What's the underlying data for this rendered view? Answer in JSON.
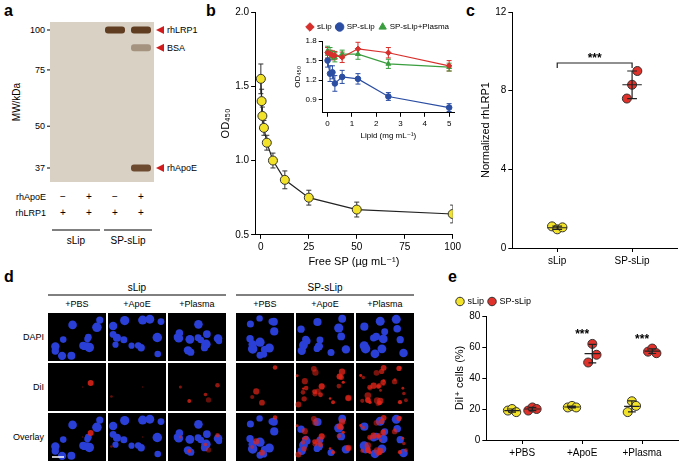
{
  "panel_labels": [
    "a",
    "b",
    "c",
    "d",
    "e"
  ],
  "blot": {
    "axis_label": "MW/kDa",
    "markers": [
      100,
      75,
      50,
      37
    ],
    "bands": [
      {
        "label": "rhLRP1",
        "mw": 100,
        "lanes": [
          2,
          3
        ]
      },
      {
        "label": "BSA",
        "mw": 88,
        "lanes": [
          3
        ]
      },
      {
        "label": "rhApoE",
        "mw": 37,
        "lanes": [
          3
        ]
      }
    ],
    "rows": [
      {
        "label": "rhApoE",
        "signs": [
          "−",
          "+",
          "−",
          "+"
        ]
      },
      {
        "label": "rhLRP1",
        "signs": [
          "+",
          "+",
          "+",
          "+"
        ]
      }
    ],
    "groups": [
      {
        "label": "sLip",
        "lanes": [
          0,
          1
        ]
      },
      {
        "label": "SP-sLip",
        "lanes": [
          2,
          3
        ]
      }
    ]
  },
  "chart_data": [
    {
      "type": "line",
      "x_label": "Free SP (µg mL⁻¹)",
      "y_label": "OD₄₅₀",
      "x": [
        0,
        0.4,
        0.8,
        1.6,
        3.1,
        6.3,
        12.5,
        25,
        50,
        100
      ],
      "values": [
        1.55,
        1.4,
        1.3,
        1.22,
        1.12,
        1.0,
        0.87,
        0.75,
        0.67,
        0.64
      ],
      "errors": [
        0.1,
        0.08,
        0.06,
        0.05,
        0.05,
        0.05,
        0.06,
        0.05,
        0.05,
        0.06
      ],
      "color": "#f2e22a",
      "marker": "circle",
      "xlim": [
        -3,
        100
      ],
      "xticks": [
        0,
        25,
        50,
        75,
        100
      ],
      "ylim": [
        0.5,
        2.0
      ],
      "yticks": [
        0.5,
        {
          "value": 1,
          "label": "1.0"
        },
        1.5,
        {
          "value": 2,
          "label": "2.0"
        }
      ],
      "grid": false
    },
    {
      "type": "line",
      "x_label": "Lipid (mg mL⁻¹)",
      "y_label": "OD₄₅₀",
      "x": [
        0,
        0.1,
        0.2,
        0.3,
        0.6,
        1.25,
        2.5,
        5
      ],
      "series": [
        {
          "name": "sLip",
          "color": "#d7302c",
          "marker": "diamond",
          "values": [
            1.62,
            1.6,
            1.58,
            1.58,
            1.55,
            1.68,
            1.62,
            1.42
          ],
          "errors": [
            0.08,
            0.06,
            0.07,
            0.06,
            0.08,
            0.1,
            0.08,
            0.08
          ]
        },
        {
          "name": "SP-sLip",
          "color": "#2b4ea3",
          "marker": "circle",
          "values": [
            1.5,
            1.3,
            1.32,
            1.15,
            1.25,
            1.22,
            0.95,
            0.78
          ],
          "errors": [
            0.1,
            0.12,
            0.1,
            0.12,
            0.1,
            0.08,
            0.06,
            0.06
          ]
        },
        {
          "name": "SP-sLip+Plasma",
          "color": "#3a9e3f",
          "marker": "triangle",
          "values": [
            1.65,
            1.62,
            1.58,
            1.55,
            1.6,
            1.6,
            1.45,
            1.4
          ],
          "errors": [
            0.07,
            0.08,
            0.06,
            0.07,
            0.06,
            0.08,
            0.07,
            0.06
          ]
        }
      ],
      "xlim": [
        -0.2,
        5.2
      ],
      "xticks": [
        0,
        1,
        2,
        3,
        4,
        5
      ],
      "ylim": [
        0.7,
        1.8
      ],
      "yticks": [
        0.9,
        1.2,
        1.5,
        1.8
      ],
      "legend": "top-right",
      "grid": false
    },
    {
      "type": "dotplot",
      "y_label": "Normalized rhLRP1",
      "categories": [
        "sLip",
        "SP-sLip"
      ],
      "points": [
        [
          1.1,
          0.95,
          1.05
        ],
        [
          7.6,
          8.3,
          9.0
        ]
      ],
      "values": [
        1.03,
        8.3
      ],
      "errors": [
        0.08,
        0.7
      ],
      "colors": [
        "#f2e22a",
        "#e0322b"
      ],
      "ylim": [
        0,
        12
      ],
      "yticks": [
        0,
        4,
        8,
        12
      ],
      "annotations": [
        {
          "text": "***",
          "categories": [
            0,
            1
          ]
        }
      ],
      "grid": false
    },
    {
      "type": "dotplot",
      "y_label": "DiI⁺ cells (%)",
      "categories": [
        "+PBS",
        "+ApoE",
        "+Plasma"
      ],
      "series": [
        {
          "name": "sLip",
          "color": "#f2e22a",
          "points": [
            [
              19,
              20,
              18
            ],
            [
              21,
              22,
              21
            ],
            [
              18,
              25,
              22
            ]
          ],
          "values": [
            19,
            21.3,
            21.7
          ],
          "errors": [
            1,
            0.6,
            3.5
          ]
        },
        {
          "name": "SP-sLip",
          "color": "#e0322b",
          "points": [
            [
              19,
              21,
              20
            ],
            [
              50,
              62,
              55
            ],
            [
              57,
              59,
              56
            ]
          ],
          "values": [
            20,
            55.7,
            57.3
          ],
          "errors": [
            1,
            6.0,
            1.5
          ]
        }
      ],
      "ylim": [
        0,
        80
      ],
      "yticks": [
        0,
        20,
        40,
        60,
        80
      ],
      "annotations": [
        {
          "text": "***",
          "categories": [
            1
          ]
        },
        {
          "text": "***",
          "categories": [
            2
          ]
        }
      ],
      "legend": "top-left",
      "grid": false
    }
  ],
  "microscopy": {
    "column_groups": [
      {
        "label": "sLip",
        "columns": [
          "+PBS",
          "+ApoE",
          "+Plasma"
        ]
      },
      {
        "label": "SP-sLip",
        "columns": [
          "+PBS",
          "+ApoE",
          "+Plasma"
        ]
      }
    ],
    "rows": [
      "DAPI",
      "DiI",
      "Overlay"
    ]
  }
}
